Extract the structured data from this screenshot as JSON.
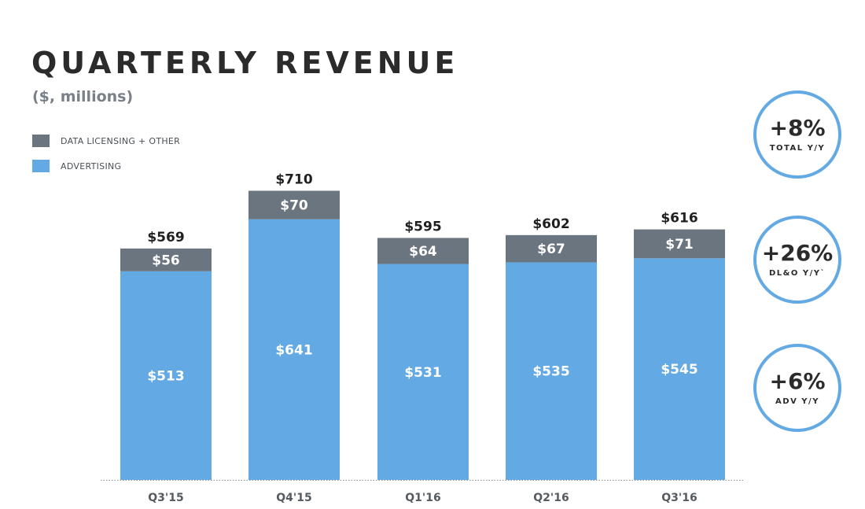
{
  "header": {
    "title": "QUARTERLY REVENUE",
    "subtitle": "($, millions)"
  },
  "legend": [
    {
      "label": "DATA LICENSING + OTHER",
      "color": "#6b7580"
    },
    {
      "label": "ADVERTISING",
      "color": "#63a9e3"
    }
  ],
  "kpis": [
    {
      "value": "+8%",
      "label": "TOTAL Y/Y"
    },
    {
      "value": "+26%",
      "label": "DL&O Y/Y`"
    },
    {
      "value": "+6%",
      "label": "ADV Y/Y"
    }
  ],
  "colors": {
    "advertising": "#63a9e3",
    "data_licensing": "#6b7580",
    "text_dark": "#1f1f1f",
    "axis_label": "#555b61"
  },
  "chart_data": {
    "type": "bar",
    "stacked": true,
    "categories": [
      "Q3'15",
      "Q4'15",
      "Q1'16",
      "Q2'16",
      "Q3'16"
    ],
    "series": [
      {
        "name": "ADVERTISING",
        "values": [
          513,
          641,
          531,
          535,
          545
        ],
        "labels": [
          "$513",
          "$641",
          "$531",
          "$535",
          "$545"
        ]
      },
      {
        "name": "DATA LICENSING + OTHER",
        "values": [
          56,
          70,
          64,
          67,
          71
        ],
        "labels": [
          "$56",
          "$70",
          "$64",
          "$67",
          "$71"
        ]
      }
    ],
    "totals": [
      569,
      710,
      595,
      602,
      616
    ],
    "total_labels": [
      "$569",
      "$710",
      "$595",
      "$602",
      "$616"
    ],
    "title": "QUARTERLY REVENUE",
    "ylabel": "($, millions)",
    "ylim": [
      0,
      710
    ],
    "grid": false,
    "legend_position": "top-left"
  }
}
